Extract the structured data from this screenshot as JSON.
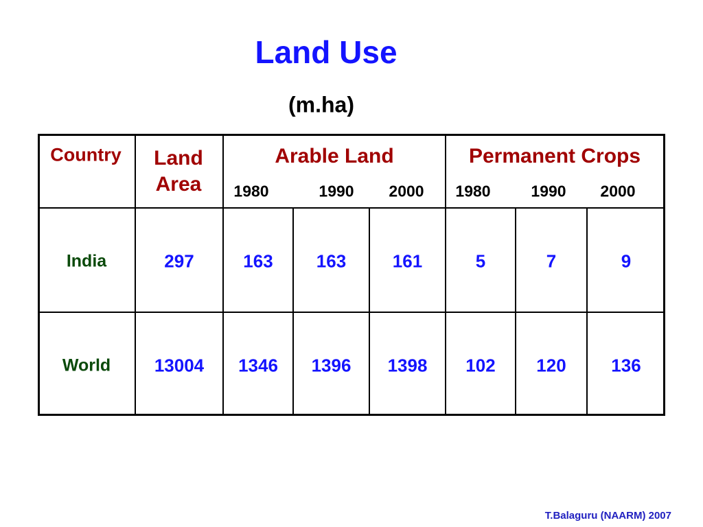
{
  "title": "Land Use",
  "subtitle": "(m.ha)",
  "table": {
    "header": {
      "country": "Country",
      "land_area": "Land Area",
      "groups": [
        {
          "label": "Arable Land",
          "years": [
            1980,
            1990,
            2000
          ]
        },
        {
          "label": "Permanent Crops",
          "years": [
            1980,
            1990,
            2000
          ]
        }
      ]
    },
    "rows": [
      [
        "India",
        297,
        163,
        163,
        161,
        5,
        7,
        9
      ],
      [
        "World",
        13004,
        1346,
        1396,
        1398,
        102,
        120,
        136
      ]
    ]
  },
  "footer": "T.Balaguru (NAARM) 2007"
}
